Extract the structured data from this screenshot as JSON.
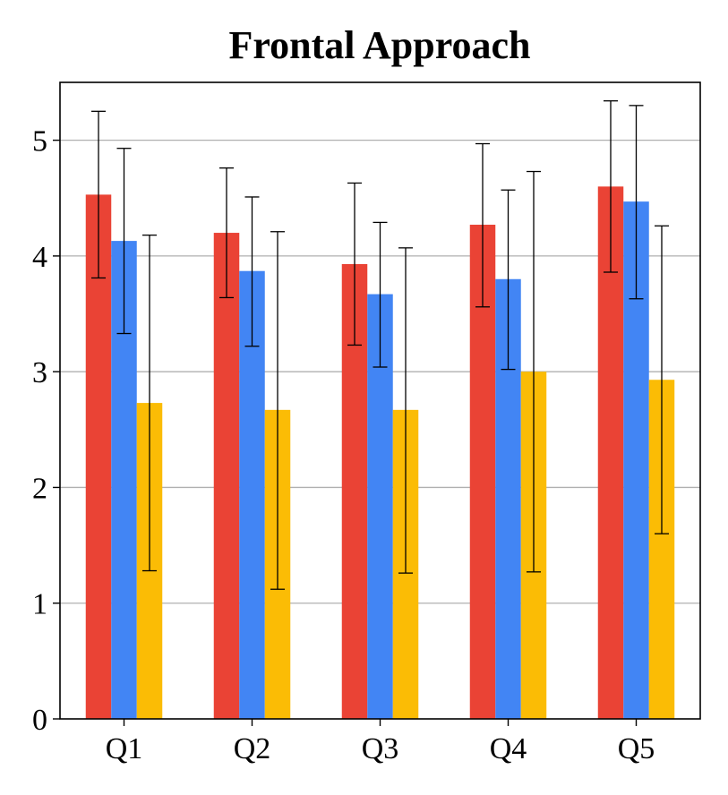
{
  "chart_data": {
    "type": "bar",
    "title": "Frontal Approach",
    "xlabel": "",
    "ylabel": "",
    "categories": [
      "Q1",
      "Q2",
      "Q3",
      "Q4",
      "Q5"
    ],
    "ylim": [
      0,
      5.5
    ],
    "yticks": [
      0,
      1,
      2,
      3,
      4,
      5
    ],
    "ytick_labels": [
      "0",
      "1",
      "2",
      "3",
      "4",
      "5"
    ],
    "grid": "y",
    "legend": "none",
    "error_bars": true,
    "series": [
      {
        "color": "#EA4335",
        "values": [
          4.53,
          4.2,
          3.93,
          4.27,
          4.6
        ],
        "err_low": [
          3.81,
          3.64,
          3.23,
          3.56,
          3.86
        ],
        "err_high": [
          5.25,
          4.76,
          4.63,
          4.97,
          5.34
        ]
      },
      {
        "color": "#4285F4",
        "values": [
          4.13,
          3.87,
          3.67,
          3.8,
          4.47
        ],
        "err_low": [
          3.33,
          3.22,
          3.04,
          3.02,
          3.63
        ],
        "err_high": [
          4.93,
          4.51,
          4.29,
          4.57,
          5.3
        ]
      },
      {
        "color": "#FBBC05",
        "values": [
          2.73,
          2.67,
          2.67,
          3.0,
          2.93
        ],
        "err_low": [
          1.28,
          1.12,
          1.26,
          1.27,
          1.6
        ],
        "err_high": [
          4.18,
          4.21,
          4.07,
          4.73,
          4.26
        ]
      }
    ]
  }
}
